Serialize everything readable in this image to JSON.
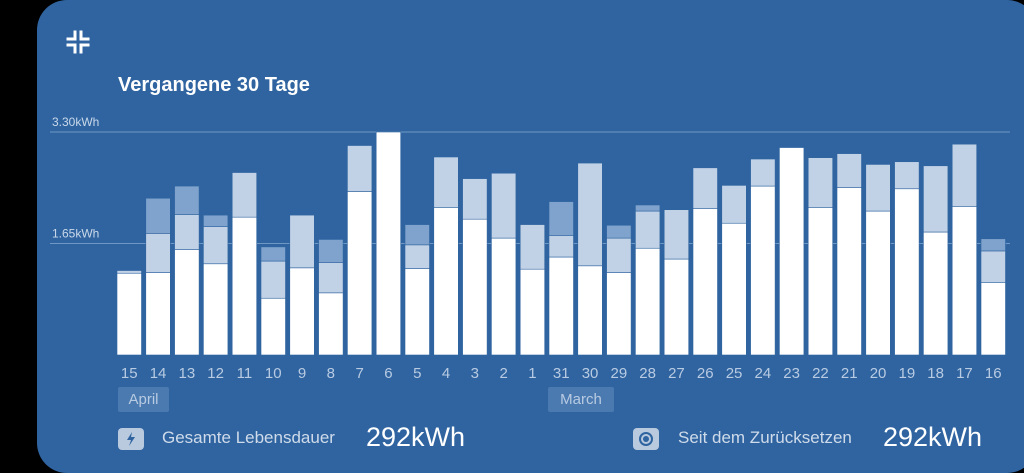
{
  "title": "Vergangene 30 Tage",
  "months": {
    "april": "April",
    "march": "March"
  },
  "footer": {
    "lifetime_label": "Gesamte Lebensdauer",
    "lifetime_value": "292kWh",
    "reset_label": "Seit dem Zurücksetzen",
    "reset_value": "292kWh"
  },
  "icons": {
    "collapse": "collapse-icon",
    "lifetime": "lightning-icon",
    "reset": "target-icon"
  },
  "colors": {
    "background": "#2f64a0",
    "primary": "#ffffff",
    "secondary": "#c2d2e6",
    "tertiary": "#7fa3cc"
  },
  "chart_data": {
    "type": "bar",
    "stacked": true,
    "categories": [
      "15",
      "14",
      "13",
      "12",
      "11",
      "10",
      "9",
      "8",
      "7",
      "6",
      "5",
      "4",
      "3",
      "2",
      "1",
      "31",
      "30",
      "29",
      "28",
      "27",
      "26",
      "25",
      "24",
      "23",
      "22",
      "21",
      "20",
      "19",
      "18",
      "17",
      "16"
    ],
    "ylabel": "",
    "ylim": [
      0,
      3.3
    ],
    "yticks": [
      "1.65kWh",
      "3.30kWh"
    ],
    "ytick_values": [
      1.65,
      3.3
    ],
    "grid": true,
    "series": [
      {
        "values": [
          1.21,
          1.22,
          1.56,
          1.35,
          2.04,
          0.84,
          1.29,
          0.92,
          2.42,
          3.3,
          1.28,
          2.18,
          2.01,
          1.73,
          1.27,
          1.45,
          1.32,
          1.22,
          1.58,
          1.42,
          2.17,
          1.95,
          2.5,
          3.07,
          2.18,
          2.48,
          2.13,
          2.46,
          1.82,
          2.2,
          1.07
        ]
      },
      {
        "values": [
          0.04,
          0.58,
          0.52,
          0.55,
          0.66,
          0.55,
          0.78,
          0.45,
          0.68,
          0,
          0.35,
          0.75,
          0.6,
          0.96,
          0.66,
          0.32,
          1.52,
          0.51,
          0.55,
          0.73,
          0.6,
          0.56,
          0.4,
          0,
          0.74,
          0.5,
          0.69,
          0.4,
          0.98,
          0.92,
          0.47
        ]
      },
      {
        "values": [
          0,
          0.52,
          0.42,
          0.17,
          0,
          0.21,
          0,
          0.34,
          0,
          0,
          0.3,
          0,
          0,
          0,
          0,
          0.5,
          0,
          0.19,
          0.09,
          0,
          0,
          0,
          0,
          0,
          0,
          0,
          0,
          0,
          0,
          0,
          0.18
        ]
      }
    ]
  }
}
